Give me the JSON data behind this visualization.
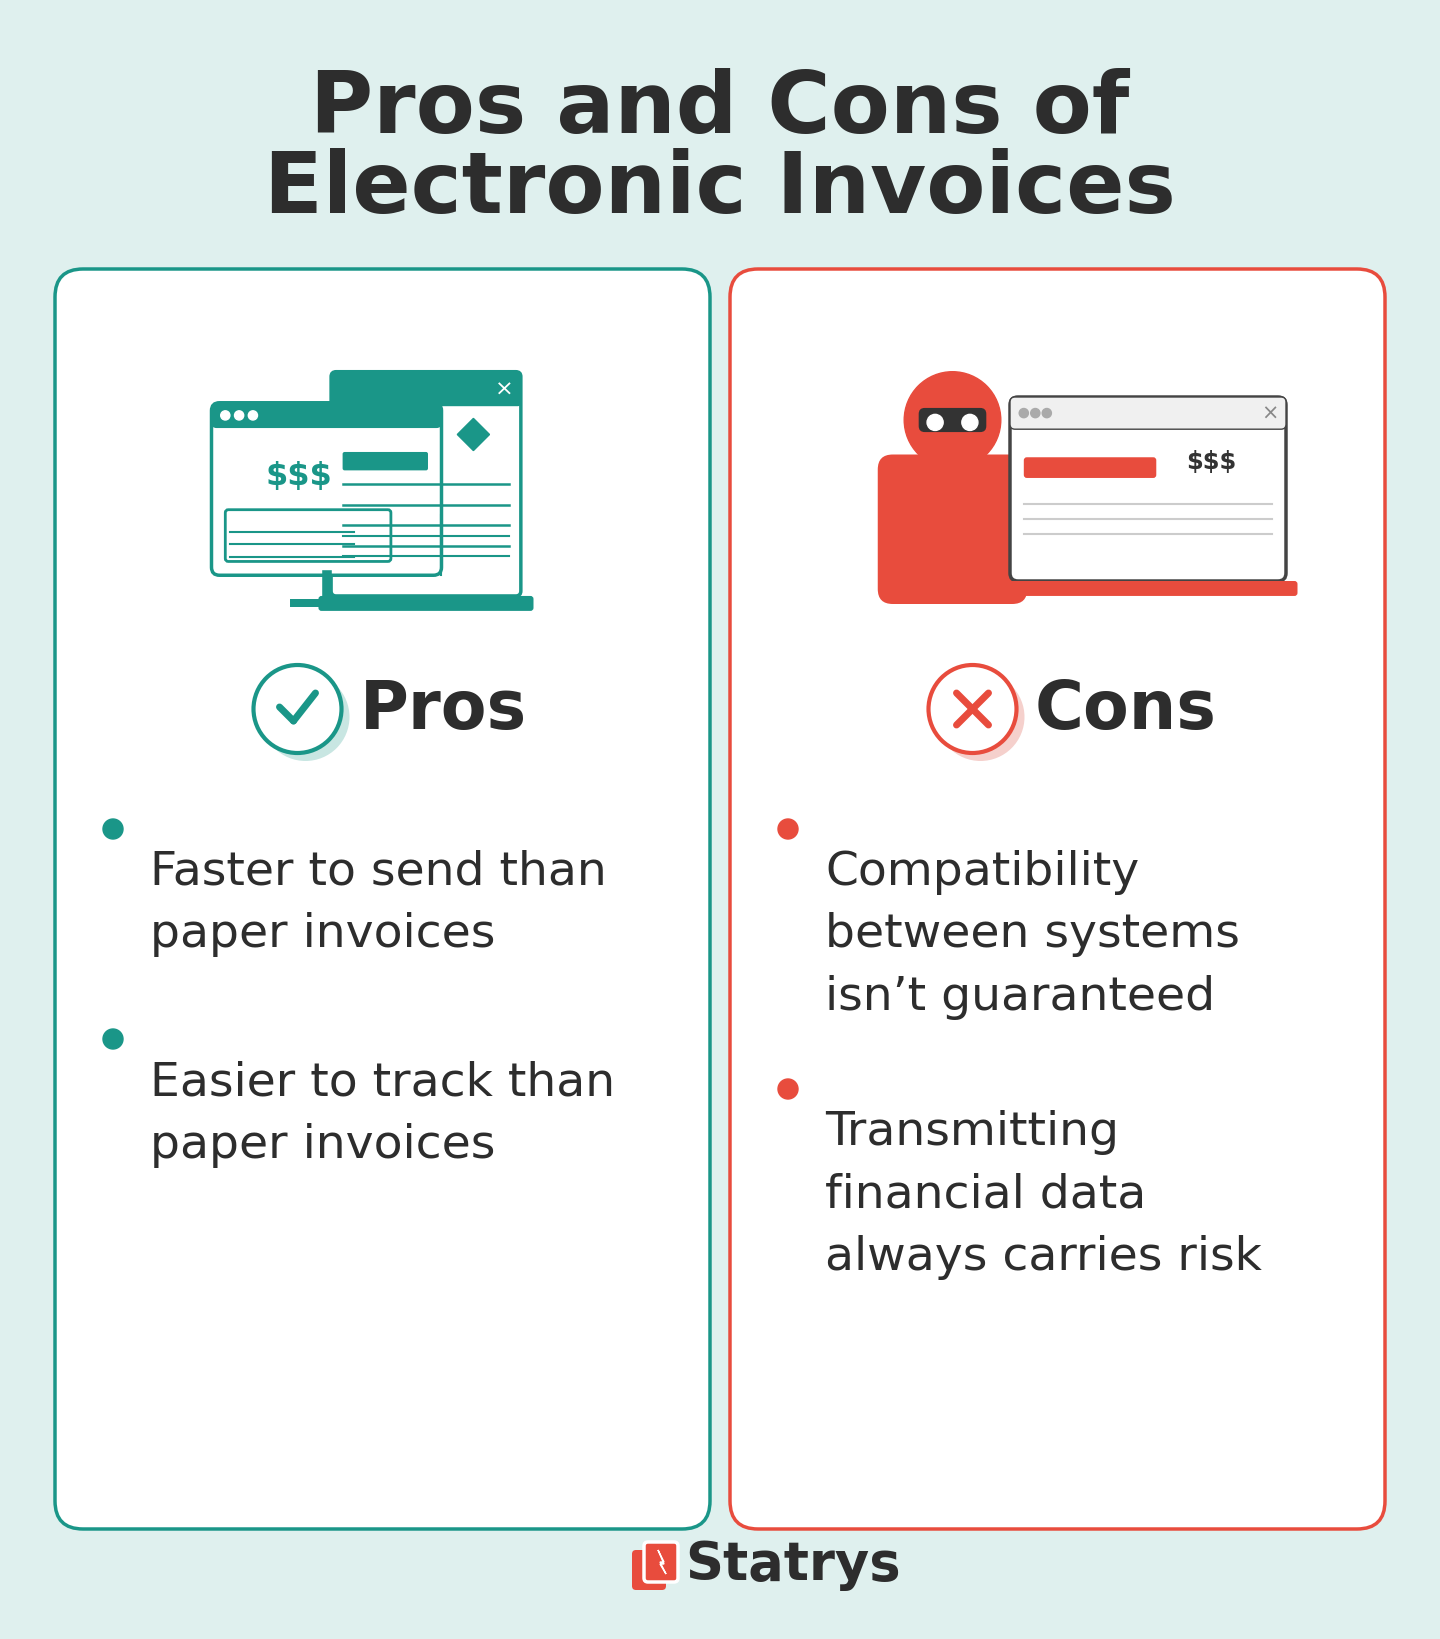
{
  "title_line1": "Pros and Cons of",
  "title_line2": "Electronic Invoices",
  "title_color": "#2d2d2d",
  "title_fontsize": 62,
  "bg_color": "#dff0ee",
  "card_color": "#ffffff",
  "pros_accent": "#1a9688",
  "cons_accent": "#e84c3d",
  "pros_title": "Pros",
  "cons_title": "Cons",
  "pros_items": [
    "Faster to send than\npaper invoices",
    "Easier to track than\npaper invoices"
  ],
  "cons_items": [
    "Compatibility\nbetween systems\nisn’t guaranteed",
    "Transmitting\nfinancial data\nalways carries risk"
  ],
  "bullet_color_pros": "#1a9688",
  "bullet_color_cons": "#e84c3d",
  "item_fontsize": 34,
  "header_fontsize": 48,
  "logo_text": "Statrys",
  "logo_color": "#2d2d2d",
  "logo_accent": "#e84c3d"
}
